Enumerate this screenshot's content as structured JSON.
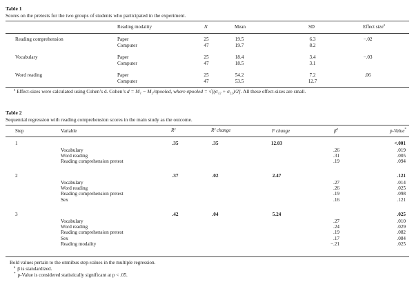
{
  "table1": {
    "label": "Table 1",
    "caption": "Scores on the pretests for the two groups of students who participated in the experiment.",
    "headers": {
      "modality": "Reading modality",
      "n": "N",
      "mean": "Mean",
      "sd": "SD",
      "effect": "Effect size",
      "effect_mark": "a"
    },
    "rows": [
      {
        "measure": "Reading comprehension",
        "effect": "−.02",
        "groups": [
          {
            "modality": "Paper",
            "n": "25",
            "mean": "19.5",
            "sd": "6.3"
          },
          {
            "modality": "Computer",
            "n": "47",
            "mean": "19.7",
            "sd": "8.2"
          }
        ]
      },
      {
        "measure": "Vocabulary",
        "effect": "−.03",
        "groups": [
          {
            "modality": "Paper",
            "n": "25",
            "mean": "18.4",
            "sd": "3.4"
          },
          {
            "modality": "Computer",
            "n": "47",
            "mean": "18.5",
            "sd": "3.1"
          }
        ]
      },
      {
        "measure": "Word reading",
        "effect": ".06",
        "groups": [
          {
            "modality": "Paper",
            "n": "25",
            "mean": "54.2",
            "sd": "7.2"
          },
          {
            "modality": "Computer",
            "n": "47",
            "mean": "53.5",
            "sd": "12.7"
          }
        ]
      }
    ],
    "footnote": {
      "mark": "a",
      "text_start": "Effect-sizes were calculated using Cohen’s d. Cohen’s ",
      "formula": "d = M₁ − M₂/σpooled, where σpooled = √[(σ₁₂ + σ₂₂)/2]",
      "text_end": ". All these effect-sizes are small."
    }
  },
  "table2": {
    "label": "Table 2",
    "caption": "Sequential regression with reading comprehension scores in the main study as the outcome.",
    "headers": {
      "step": "Step",
      "variable": "Variable",
      "r2": "R²",
      "r2change": "R² change",
      "fchange": "F change",
      "beta": "β",
      "beta_mark": "a",
      "p": "p-Value",
      "p_mark": "*"
    },
    "steps": [
      {
        "step": "1",
        "r2": ".35",
        "r2change": ".35",
        "fchange": "12.03",
        "p": "<.001",
        "vars": [
          {
            "name": "Vocabulary",
            "beta": ".26",
            "p": ".019"
          },
          {
            "name": "Word reading",
            "beta": ".31",
            "p": ".005"
          },
          {
            "name": "Reading comprehension pretest",
            "beta": ".19",
            "p": ".094"
          }
        ]
      },
      {
        "step": "2",
        "r2": ".37",
        "r2change": ".02",
        "fchange": "2.47",
        "p": ".121",
        "vars": [
          {
            "name": "Vocabulary",
            "beta": ".27",
            "p": ".014"
          },
          {
            "name": "Word reading",
            "beta": ".26",
            "p": ".025"
          },
          {
            "name": "Reading comprehension pretest",
            "beta": ".19",
            "p": ".098"
          },
          {
            "name": "Sex",
            "beta": ".16",
            "p": ".121"
          }
        ]
      },
      {
        "step": "3",
        "r2": ".42",
        "r2change": ".04",
        "fchange": "5.24",
        "p": ".025",
        "vars": [
          {
            "name": "Vocabulary",
            "beta": ".27",
            "p": ".010"
          },
          {
            "name": "Word reading",
            "beta": ".24",
            "p": ".029"
          },
          {
            "name": "Reading comprehension pretest",
            "beta": ".19",
            "p": ".082"
          },
          {
            "name": "Sex",
            "beta": ".17",
            "p": ".084"
          },
          {
            "name": "Reading modality",
            "beta": "−.21",
            "p": ".025"
          }
        ]
      }
    ],
    "notes": [
      {
        "mark": "",
        "text": "Bold values pertain to the omnibus step-values in the multiple regression."
      },
      {
        "mark": "a",
        "text": "β is standardized."
      },
      {
        "mark": "*",
        "text": "p-Value is considered statistically significant at p < .05."
      }
    ]
  }
}
